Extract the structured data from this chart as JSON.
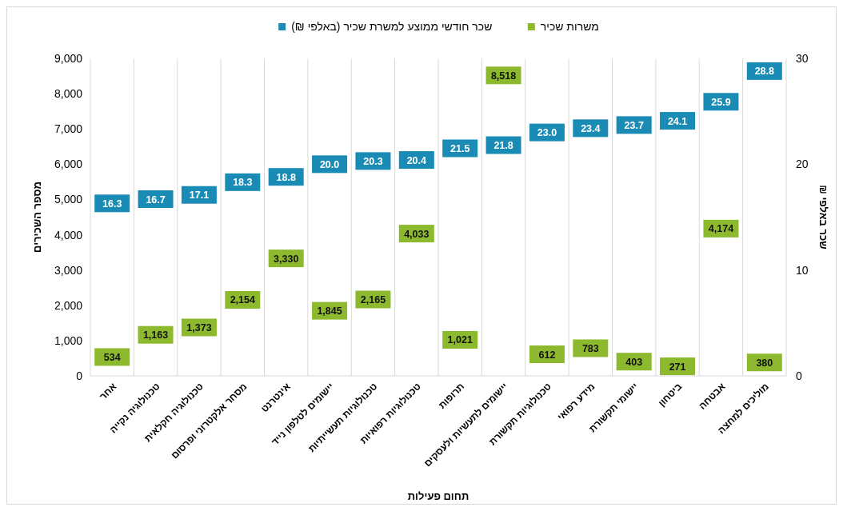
{
  "chart_data": {
    "type": "scatter",
    "marker": "square",
    "legend": "top",
    "grid": "x",
    "xlabel": "תחום פעילות",
    "ylabel": "מספר השכירים",
    "y2label": "שכר באלפי ₪",
    "categories": [
      "אחר",
      "טכנולוגיה נקייה",
      "טכנולוגיה חקלאית",
      "מסחר אלקטרוני ופרסום",
      "אינטרנט",
      "יישומים לטלפון נייד",
      "טכנולוגיות תעשייתיות",
      "טכנולוגיות רפואיות",
      "תרופות",
      "יישומים לתעשיות ולעסקים",
      "טכנולוגיות תקשורת",
      "מידע רפואי",
      "יישומי תקשורת",
      "ביטחון",
      "אבטחה",
      "מוליכים למחצה"
    ],
    "ylim": [
      0,
      9000
    ],
    "yticks": [
      0,
      {
        "value": 1000,
        "label": "1,000"
      },
      {
        "value": 2000,
        "label": "2,000"
      },
      {
        "value": 3000,
        "label": "3,000"
      },
      {
        "value": 4000,
        "label": "4,000"
      },
      {
        "value": 5000,
        "label": "5,000"
      },
      {
        "value": 6000,
        "label": "6,000"
      },
      {
        "value": 7000,
        "label": "7,000"
      },
      {
        "value": 8000,
        "label": "8,000"
      },
      {
        "value": 9000,
        "label": "9,000"
      }
    ],
    "y2lim": [
      0,
      30
    ],
    "y2ticks": [
      0,
      10,
      20,
      30
    ],
    "series": [
      {
        "name": "משרות שכיר",
        "color": "#8db92e",
        "values": [
          534,
          1163,
          1373,
          2154,
          3330,
          1845,
          2165,
          4033,
          1021,
          8518,
          612,
          783,
          403,
          271,
          4174,
          380
        ],
        "value_labels": [
          "534",
          "1,163",
          "1,373",
          "2,154",
          "3,330",
          "1,845",
          "2,165",
          "4,033",
          "1,021",
          "8,518",
          "612",
          "783",
          "403",
          "271",
          "4,174",
          "380"
        ]
      },
      {
        "name": "שכר חודשי ממוצע למשרת שכיר  (באלפי ₪)",
        "color": "#1a8bb5",
        "axis": "y2",
        "values": [
          16.3,
          16.7,
          17.1,
          18.3,
          18.8,
          20.0,
          20.3,
          20.4,
          21.5,
          21.8,
          23.0,
          23.4,
          23.7,
          24.1,
          25.9,
          28.8
        ],
        "value_labels": [
          "16.3",
          "16.7",
          "17.1",
          "18.3",
          "18.8",
          "20.0",
          "20.3",
          "20.4",
          "21.5",
          "21.8",
          "23.0",
          "23.4",
          "23.7",
          "24.1",
          "25.9",
          "28.8"
        ]
      }
    ]
  }
}
